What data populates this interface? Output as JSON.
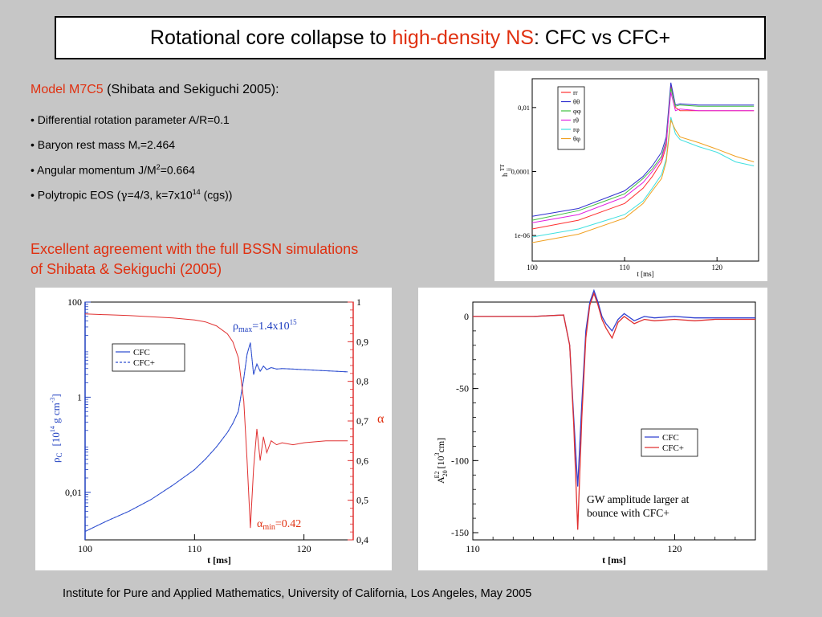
{
  "slide": {
    "title_pre": "Rotational core collapse to ",
    "title_highlight": "high-density NS",
    "title_post": ": CFC vs CFC+",
    "model_name": "Model M7C5",
    "model_ref": " (Shibata and Sekiguchi 2005):",
    "bullets": {
      "b1": "• Differential rotation parameter A/R=0.1",
      "b2_pre": "• Baryon rest mass M",
      "b2_sub": "*",
      "b2_post": "=2.464",
      "b3_pre": "• Angular momentum J/M",
      "b3_sup": "2",
      "b3_post": "=0.664",
      "b4_pre": "• Polytropic EOS (",
      "b4_gamma": "γ",
      "b4_mid": "=4/3, k=7x10",
      "b4_sup": "14",
      "b4_post": " (cgs))"
    },
    "agreement_line1": "Excellent agreement with the full BSSN simulations",
    "agreement_line2": "of Shibata & Sekiguchi (2005)",
    "footer": "Institute for Pure and Applied Mathematics, University of California, Los Angeles, May 2005"
  },
  "chart_data": [
    {
      "type": "line",
      "x": [
        100,
        105,
        110,
        112,
        113,
        114,
        114.5,
        115,
        115.5,
        116,
        118,
        120,
        122,
        124
      ],
      "xlabel": "t [ms]",
      "ylabel_main": "h",
      "ylabel_sub": "ij",
      "ylabel_sup": "TT",
      "x_ticks": [
        "100",
        "110",
        "120"
      ],
      "y_ticks": [
        "0,01",
        "0,0001",
        "1e-06"
      ],
      "xlim": [
        100,
        124.5
      ],
      "ylim_log10": [
        -6.8,
        -1.1
      ],
      "y_scale": "log",
      "legend_position": "top-left",
      "series": [
        {
          "name": "rr",
          "color": "#ff3030",
          "values": [
            1.6e-06,
            3e-06,
            1e-05,
            3e-05,
            7e-05,
            0.0002,
            0.0006,
            0.05,
            0.01,
            0.008,
            0.008,
            0.008,
            0.008,
            0.008
          ]
        },
        {
          "name": "θθ",
          "color": "#3030d0",
          "values": [
            4e-06,
            7e-06,
            2.5e-05,
            7e-05,
            0.00015,
            0.0004,
            0.0012,
            0.06,
            0.012,
            0.013,
            0.012,
            0.012,
            0.012,
            0.012
          ]
        },
        {
          "name": "φφ",
          "color": "#40c040",
          "values": [
            3e-06,
            6e-06,
            2e-05,
            6e-05,
            0.00012,
            0.0003,
            0.0009,
            0.04,
            0.011,
            0.012,
            0.011,
            0.011,
            0.011,
            0.011
          ]
        },
        {
          "name": "rθ",
          "color": "#e020e0",
          "values": [
            2.5e-06,
            4.5e-06,
            1.6e-05,
            4.5e-05,
            0.0001,
            0.00025,
            0.0008,
            0.03,
            0.008,
            0.009,
            0.008,
            0.008,
            0.008,
            0.008
          ]
        },
        {
          "name": "rφ",
          "color": "#40e0e0",
          "values": [
            9e-07,
            1.6e-06,
            4.5e-06,
            1.2e-05,
            3e-05,
            8e-05,
            0.00025,
            0.005,
            0.0015,
            0.001,
            0.0006,
            0.0004,
            0.0002,
            0.00015
          ]
        },
        {
          "name": "θφ",
          "color": "#f0a020",
          "values": [
            6e-07,
            1.1e-06,
            3.5e-06,
            1e-05,
            2.5e-05,
            6e-05,
            0.0002,
            0.004,
            0.002,
            0.0012,
            0.0008,
            0.0005,
            0.0003,
            0.0002
          ]
        }
      ]
    },
    {
      "type": "line",
      "x": [
        100,
        102,
        104,
        106,
        108,
        110,
        111,
        112,
        113,
        113.5,
        114,
        114.5,
        114.8,
        115.1,
        115.4,
        115.7,
        116,
        116.3,
        116.6,
        117,
        117.5,
        118,
        119,
        120,
        122,
        124
      ],
      "xlabel": "t [ms]",
      "ylabel_left_sym": "ρ",
      "ylabel_left_sub": "C",
      "ylabel_left_unit": "[10",
      "ylabel_left_unit_sup": "14",
      "ylabel_left_unit_post": " g cm",
      "ylabel_left_unit_sup2": "-3",
      "ylabel_left_unit_end": "]",
      "ylabel_right": "α",
      "x_ticks": [
        "100",
        "110",
        "120"
      ],
      "y_ticks_left": [
        "100",
        "1",
        "0,01"
      ],
      "y_ticks_right": [
        "0,4",
        "0,5",
        "0,6",
        "0,7",
        "0,8",
        "0,9",
        "1"
      ],
      "xlim": [
        100,
        124.5
      ],
      "ylim_left_log10": [
        -3,
        2
      ],
      "ylim_right": [
        0.4,
        1.0
      ],
      "legend_position": "top-left",
      "annotation_max_sym": "ρ",
      "annotation_max_sub": "max",
      "annotation_max_text": "=1.4x10",
      "annotation_max_sup": "15",
      "annotation_min_sym": "α",
      "annotation_min_sub": "min",
      "annotation_min_text": "=0.42",
      "series": [
        {
          "name": "CFC",
          "color": "#3050d0",
          "axis": "left",
          "values": [
            0.0015,
            0.0025,
            0.004,
            0.007,
            0.014,
            0.03,
            0.05,
            0.09,
            0.18,
            0.28,
            0.5,
            2.5,
            8,
            14,
            3,
            5,
            3.5,
            4.5,
            3.8,
            4.2,
            3.9,
            4.0,
            3.9,
            3.8,
            3.6,
            3.4
          ]
        },
        {
          "name": "CFC+",
          "color": "#3050d0",
          "axis": "left",
          "values": [
            0.0015,
            0.0025,
            0.004,
            0.007,
            0.014,
            0.03,
            0.05,
            0.09,
            0.18,
            0.28,
            0.5,
            2.5,
            8,
            14,
            3,
            5,
            3.5,
            4.5,
            3.8,
            4.2,
            3.9,
            4.0,
            3.9,
            3.8,
            3.6,
            3.4
          ]
        },
        {
          "name": "α",
          "color": "#e03030",
          "axis": "right",
          "values": [
            0.97,
            0.968,
            0.966,
            0.963,
            0.96,
            0.955,
            0.95,
            0.94,
            0.92,
            0.9,
            0.86,
            0.75,
            0.6,
            0.43,
            0.58,
            0.68,
            0.6,
            0.66,
            0.62,
            0.65,
            0.64,
            0.645,
            0.64,
            0.645,
            0.65,
            0.65
          ]
        }
      ]
    },
    {
      "type": "line",
      "x": [
        110,
        113,
        114.5,
        114.8,
        115.0,
        115.2,
        115.4,
        115.6,
        115.8,
        116.0,
        116.2,
        116.4,
        116.6,
        116.9,
        117.2,
        117.5,
        118,
        118.5,
        119,
        120,
        121,
        122,
        124
      ],
      "xlabel": "t [ms]",
      "ylabel_main": "A",
      "ylabel_sub": "20",
      "ylabel_sup": "E2",
      "ylabel_unit": " [10",
      "ylabel_unit_sup": "3",
      "ylabel_unit_post": "cm]",
      "x_ticks": [
        "110",
        "120"
      ],
      "y_ticks": [
        "0",
        "-50",
        "-100",
        "-150"
      ],
      "xlim": [
        110,
        124
      ],
      "ylim": [
        -155,
        10
      ],
      "legend_position": "bottom-right",
      "annotation": "GW amplitude larger at bounce with CFC+",
      "annotation_line1": "GW amplitude larger at",
      "annotation_line2": "bounce with CFC+",
      "series": [
        {
          "name": "CFC",
          "color": "#3040d0",
          "values": [
            0,
            0,
            1,
            -20,
            -70,
            -118,
            -60,
            -10,
            10,
            18,
            10,
            0,
            -5,
            -10,
            -2,
            2,
            -3,
            0,
            -1,
            0,
            -1,
            -1,
            -1
          ]
        },
        {
          "name": "CFC+",
          "color": "#e03030",
          "values": [
            0,
            0,
            1,
            -20,
            -75,
            -148,
            -70,
            -15,
            8,
            16,
            8,
            -2,
            -8,
            -15,
            -4,
            0,
            -5,
            -2,
            -3,
            -2,
            -3,
            -2,
            -2
          ]
        }
      ]
    }
  ]
}
